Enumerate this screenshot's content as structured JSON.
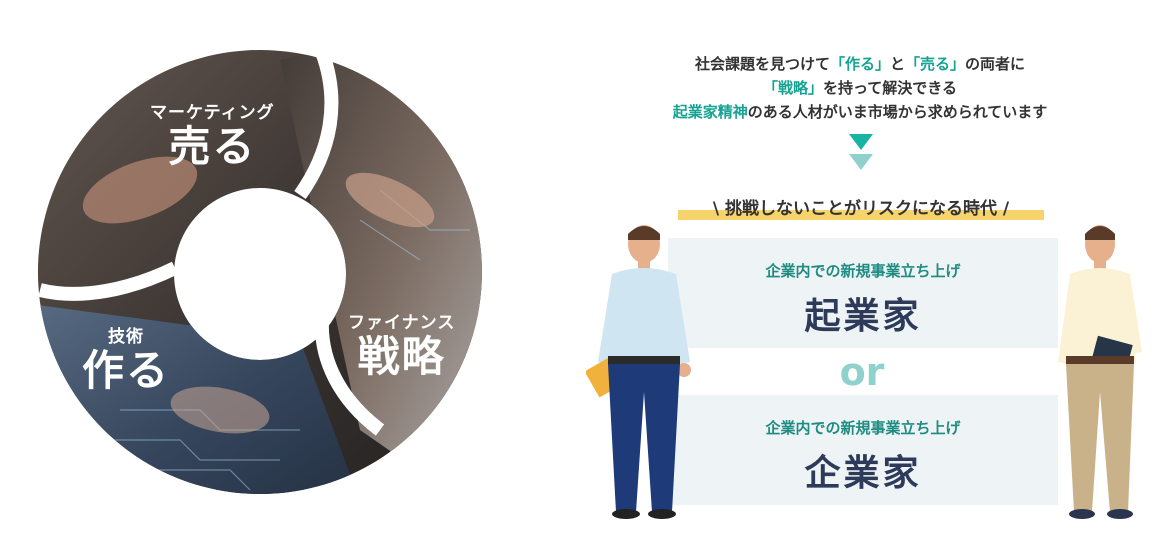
{
  "colors": {
    "accent": "#17a393",
    "highlight": "#f7d36b",
    "box_bg": "#eef3f5",
    "navy": "#2d3a5a",
    "or_color": "#8fd1cc"
  },
  "segments": {
    "sell": {
      "small": "マーケティング",
      "big": "売る"
    },
    "make": {
      "small": "技術",
      "big": "作る"
    },
    "strategy": {
      "small": "ファイナンス",
      "big": "戦略"
    }
  },
  "intro": {
    "line1_prefix": "社会課題を見つけて",
    "line1_hl1": "「作る」",
    "line1_mid": "と",
    "line1_hl2": "「売る」",
    "line1_suffix": "の両者に",
    "line2_hl": "「戦略」",
    "line2_suffix": "を持って解決できる",
    "line3_hl": "起業家精神",
    "line3_suffix": "のある人材がいま市場から求められています"
  },
  "banner": "\\ 挑戦しないことがリスクになる時代 /",
  "option1": {
    "sub": "企業内での新規事業立ち上げ",
    "main": "起業家"
  },
  "or": "or",
  "option2": {
    "sub": "企業内での新規事業立ち上げ",
    "main": "企業家"
  }
}
